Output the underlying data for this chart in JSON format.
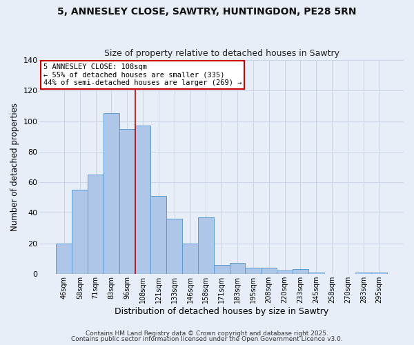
{
  "title1": "5, ANNESLEY CLOSE, SAWTRY, HUNTINGDON, PE28 5RN",
  "title2": "Size of property relative to detached houses in Sawtry",
  "xlabel": "Distribution of detached houses by size in Sawtry",
  "ylabel": "Number of detached properties",
  "categories": [
    "46sqm",
    "58sqm",
    "71sqm",
    "83sqm",
    "96sqm",
    "108sqm",
    "121sqm",
    "133sqm",
    "146sqm",
    "158sqm",
    "171sqm",
    "183sqm",
    "195sqm",
    "208sqm",
    "220sqm",
    "233sqm",
    "245sqm",
    "258sqm",
    "270sqm",
    "283sqm",
    "295sqm"
  ],
  "values": [
    20,
    55,
    65,
    105,
    95,
    97,
    51,
    36,
    20,
    37,
    6,
    7,
    4,
    4,
    2,
    3,
    1,
    0,
    0,
    1,
    1
  ],
  "bar_color": "#aec6e8",
  "bar_edge_color": "#5b9bd5",
  "annotation_line1": "5 ANNESLEY CLOSE: 108sqm",
  "annotation_line2": "← 55% of detached houses are smaller (335)",
  "annotation_line3": "44% of semi-detached houses are larger (269) →",
  "annotation_box_color": "#ffffff",
  "annotation_box_edge_color": "#cc0000",
  "highlight_line_color": "#cc0000",
  "grid_color": "#c8d4e8",
  "background_color": "#e8eef8",
  "footer1": "Contains HM Land Registry data © Crown copyright and database right 2025.",
  "footer2": "Contains public sector information licensed under the Open Government Licence v3.0.",
  "ylim": [
    0,
    140
  ],
  "yticks": [
    0,
    20,
    40,
    60,
    80,
    100,
    120,
    140
  ]
}
